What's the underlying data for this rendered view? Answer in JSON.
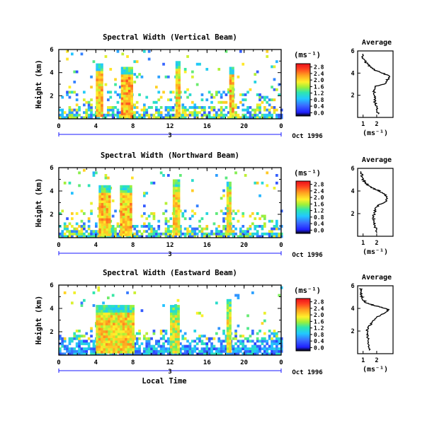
{
  "chart_data": [
    {
      "type": "heatmap",
      "title": "Spectral Width (Vertical Beam)",
      "ylabel": "Height (km)",
      "yticks": [
        "2",
        "4",
        "6"
      ],
      "ylim": [
        0,
        6
      ],
      "xticks": [
        "0",
        "4",
        "8",
        "12",
        "16",
        "20",
        "0"
      ],
      "xlim": [
        0,
        24
      ],
      "day_label": "3",
      "date_label": "Oct 1996",
      "colorbar": {
        "unit": "(ms⁻¹)",
        "ticks": [
          "0.0",
          "0.4",
          "0.8",
          "1.2",
          "1.6",
          "2.0",
          "2.4",
          "2.8"
        ],
        "range": [
          0,
          3.2
        ]
      },
      "blocks": [
        {
          "x": [
            4.0,
            4.6
          ],
          "y": [
            0.2,
            4.8
          ],
          "v": 2.7
        },
        {
          "x": [
            6.7,
            7.8
          ],
          "y": [
            0.2,
            4.5
          ],
          "v": 2.8
        },
        {
          "x": [
            12.6,
            13.0
          ],
          "y": [
            0.2,
            5.0
          ],
          "v": 2.6
        },
        {
          "x": [
            18.4,
            18.8
          ],
          "y": [
            0.2,
            4.5
          ],
          "v": 2.7
        }
      ],
      "average": {
        "title": "Average",
        "xticks": [
          "1",
          "2"
        ],
        "xlim": [
          0.6,
          3.2
        ],
        "ylim": [
          0,
          6
        ],
        "yticks": [
          "2",
          "4",
          "6"
        ],
        "xlabel": "(ms⁻¹)",
        "y": [
          0.3,
          0.8,
          1.2,
          1.6,
          2.0,
          2.4,
          2.8,
          3.0,
          3.4,
          3.7,
          4.0,
          4.2,
          4.4,
          4.7,
          5.0,
          5.4,
          5.8
        ],
        "x": [
          2.1,
          2.0,
          1.9,
          1.85,
          1.8,
          1.8,
          1.9,
          2.6,
          2.8,
          3.0,
          2.4,
          2.0,
          1.7,
          1.4,
          1.2,
          1.0,
          0.9
        ]
      }
    },
    {
      "type": "heatmap",
      "title": "Spectral Width (Northward Beam)",
      "ylabel": "Height (km)",
      "yticks": [
        "2",
        "4",
        "6"
      ],
      "ylim": [
        0,
        6
      ],
      "xticks": [
        "0",
        "4",
        "8",
        "12",
        "16",
        "20",
        "0"
      ],
      "xlim": [
        0,
        24
      ],
      "day_label": "3",
      "date_label": "Oct 1996",
      "colorbar": {
        "unit": "(ms⁻¹)",
        "ticks": [
          "0.0",
          "0.4",
          "0.8",
          "1.2",
          "1.6",
          "2.0",
          "2.4",
          "2.8"
        ],
        "range": [
          0,
          3.2
        ]
      },
      "blocks": [
        {
          "x": [
            4.3,
            5.4
          ],
          "y": [
            0.3,
            4.5
          ],
          "v": 2.7
        },
        {
          "x": [
            6.6,
            7.8
          ],
          "y": [
            0.3,
            4.5
          ],
          "v": 2.7
        },
        {
          "x": [
            12.3,
            12.9
          ],
          "y": [
            0.3,
            5.0
          ],
          "v": 2.6
        },
        {
          "x": [
            18.1,
            18.4
          ],
          "y": [
            0.3,
            4.8
          ],
          "v": 2.5
        }
      ],
      "average": {
        "title": "Average",
        "xticks": [
          "1",
          "2"
        ],
        "xlim": [
          0.6,
          3.2
        ],
        "ylim": [
          0,
          6
        ],
        "yticks": [
          "2",
          "4",
          "6"
        ],
        "xlabel": "(ms⁻¹)",
        "y": [
          0.3,
          0.8,
          1.2,
          1.6,
          2.0,
          2.4,
          2.8,
          3.0,
          3.4,
          3.7,
          4.0,
          4.2,
          4.4,
          4.7,
          5.0,
          5.4,
          5.8
        ],
        "x": [
          2.0,
          1.9,
          1.8,
          1.75,
          1.8,
          1.9,
          2.2,
          2.6,
          2.8,
          2.6,
          2.2,
          1.8,
          1.5,
          1.2,
          1.0,
          0.9,
          0.85
        ]
      }
    },
    {
      "type": "heatmap",
      "title": "Spectral Width (Eastward Beam)",
      "ylabel": "Height (km)",
      "yticks": [
        "2",
        "4",
        "6"
      ],
      "ylim": [
        0,
        6
      ],
      "xticks": [
        "0",
        "4",
        "8",
        "12",
        "16",
        "20",
        "0"
      ],
      "xlim": [
        0,
        24
      ],
      "xlabel": "Local Time",
      "day_label": "3",
      "date_label": "Oct 1996",
      "colorbar": {
        "unit": "(ms⁻¹)",
        "ticks": [
          "0.0",
          "0.4",
          "0.8",
          "1.2",
          "1.6",
          "2.0",
          "2.4",
          "2.8"
        ],
        "range": [
          0,
          3.2
        ]
      },
      "blocks": [
        {
          "x": [
            4.0,
            8.0
          ],
          "y": [
            0.3,
            4.3
          ],
          "v": 2.6
        },
        {
          "x": [
            12.0,
            13.0
          ],
          "y": [
            0.3,
            4.3
          ],
          "v": 2.4
        },
        {
          "x": [
            18.1,
            18.5
          ],
          "y": [
            0.3,
            4.8
          ],
          "v": 2.4
        }
      ],
      "average": {
        "title": "Average",
        "xticks": [
          "1",
          "2"
        ],
        "xlim": [
          0.6,
          3.2
        ],
        "ylim": [
          0,
          6
        ],
        "yticks": [
          "2",
          "4",
          "6"
        ],
        "xlabel": "(ms⁻¹)",
        "y": [
          0.3,
          0.8,
          1.2,
          1.6,
          2.0,
          2.4,
          2.8,
          3.2,
          3.6,
          3.9,
          4.1,
          4.3,
          4.5,
          4.8,
          5.1,
          5.5,
          5.8
        ],
        "x": [
          1.5,
          1.45,
          1.4,
          1.3,
          1.3,
          1.4,
          1.7,
          2.0,
          2.6,
          2.9,
          2.3,
          1.7,
          1.2,
          1.0,
          0.9,
          0.85,
          0.8
        ]
      }
    }
  ]
}
